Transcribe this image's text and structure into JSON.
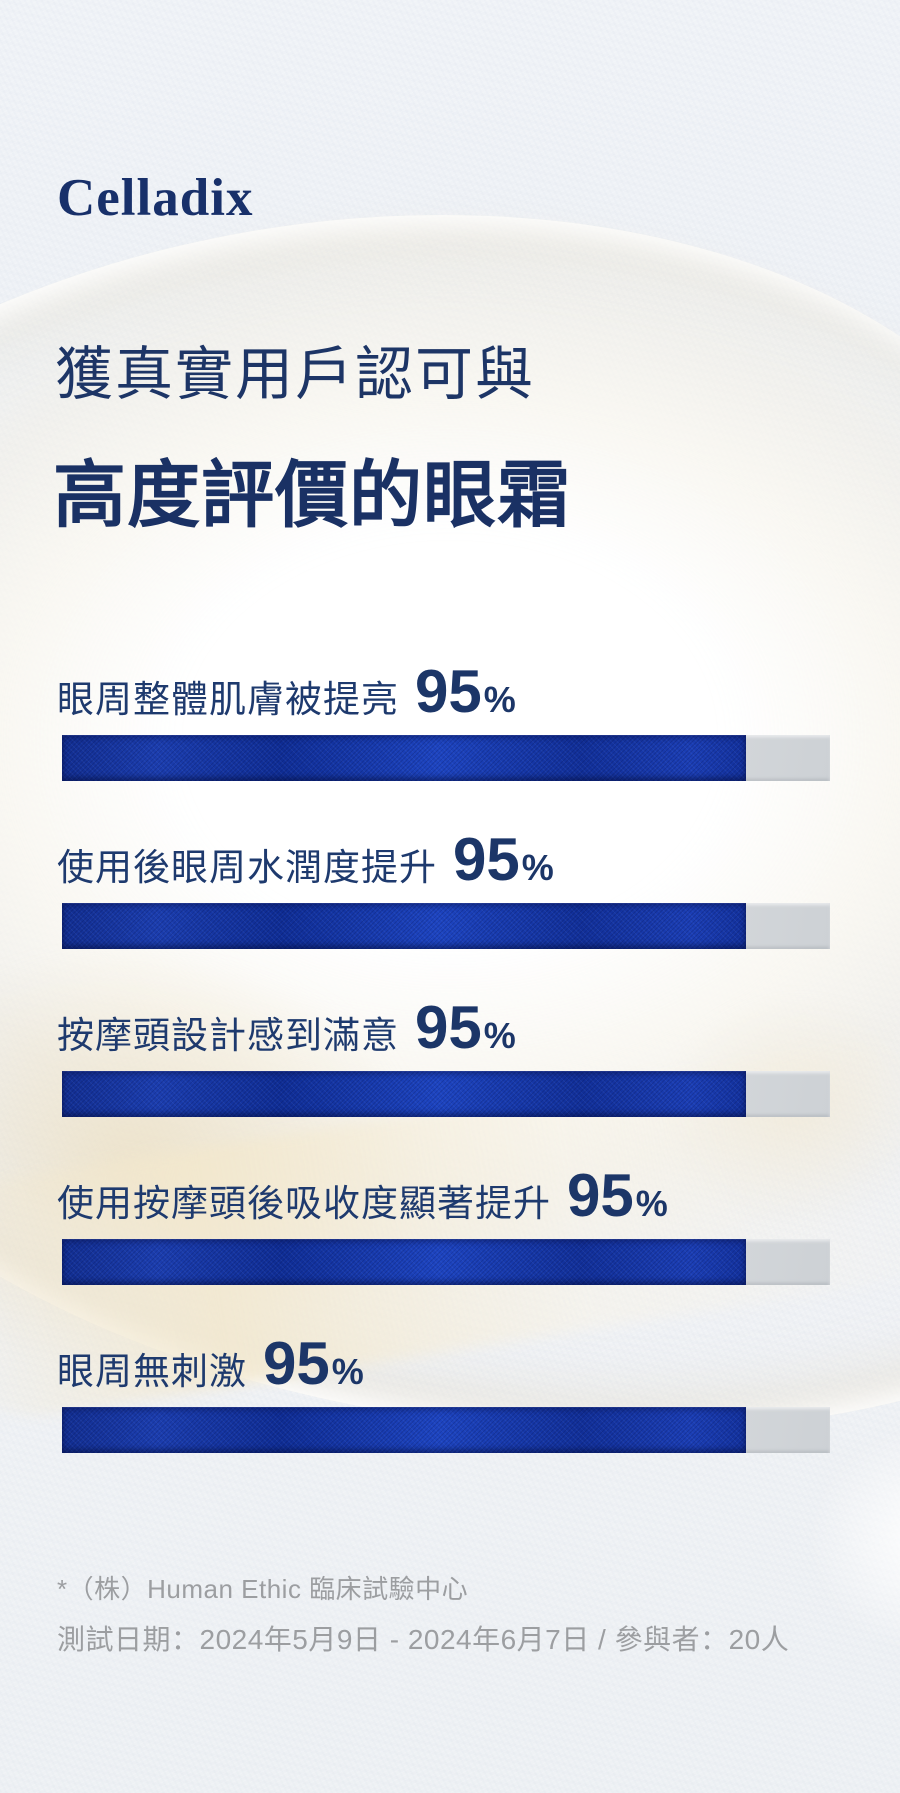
{
  "brand": {
    "logo_text": "Celladix"
  },
  "heading": {
    "line1": "獲真實用戶認可與",
    "line2": "高度評價的眼霜"
  },
  "chart_data": {
    "type": "bar",
    "orientation": "horizontal",
    "title": "獲真實用戶認可與高度評價的眼霜",
    "categories": [
      "眼周整體肌膚被提亮",
      "使用後眼周水潤度提升",
      "按摩頭設計感到滿意",
      "使用按摩頭後吸收度顯著提升",
      "眼周無刺激"
    ],
    "values": [
      95,
      95,
      95,
      95,
      95
    ],
    "unit": "%",
    "xlim": [
      0,
      100
    ],
    "grid": false,
    "legend": "none",
    "value_label_position": "inline-after-category",
    "bar_color": "#16379f",
    "track_color": "#cdd1d6"
  },
  "items": [
    {
      "label": "眼周整體肌膚被提亮",
      "value": "95",
      "unit": "%",
      "fill_percent": 89
    },
    {
      "label": "使用後眼周水潤度提升",
      "value": "95",
      "unit": "%",
      "fill_percent": 89
    },
    {
      "label": "按摩頭設計感到滿意",
      "value": "95",
      "unit": "%",
      "fill_percent": 89
    },
    {
      "label": "使用按摩頭後吸收度顯著提升",
      "value": "95",
      "unit": "%",
      "fill_percent": 89
    },
    {
      "label": "眼周無刺激",
      "value": "95",
      "unit": "%",
      "fill_percent": 89
    }
  ],
  "footnotes": {
    "line1": "*（株）Human Ethic 臨床試驗中心",
    "line2": "測試日期：2024年5月9日 - 2024年6月7日 / 參與者：20人"
  },
  "colors": {
    "brand_navy": "#1a3166",
    "bar_blue": "#16379f",
    "bar_track_gray": "#cdd1d6",
    "footnote_gray": "#9c9ea1",
    "background_gray": "#eff2f5",
    "cream_accent": "#f3ecda"
  }
}
